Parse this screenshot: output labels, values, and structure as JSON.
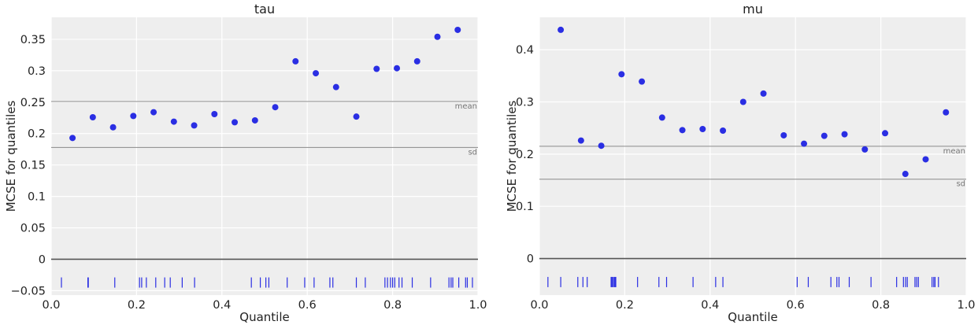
{
  "chart_data": [
    {
      "type": "scatter",
      "title": "tau",
      "xlabel": "Quantile",
      "ylabel": "MCSE for quantiles",
      "xlim": [
        0,
        1
      ],
      "ylim": [
        -0.057,
        0.385
      ],
      "xticks": [
        0,
        0.2,
        0.4,
        0.6,
        0.8,
        1
      ],
      "xtick_labels": [
        "0.0",
        "0.2",
        "0.4",
        "0.6",
        "0.8",
        "1.0"
      ],
      "yticks": [
        -0.05,
        0,
        0.05,
        0.1,
        0.15,
        0.2,
        0.25,
        0.3,
        0.35
      ],
      "ytick_labels": [
        "−0.05",
        "0",
        "0.05",
        "0.1",
        "0.15",
        "0.2",
        "0.25",
        "0.3",
        "0.35"
      ],
      "grid": true,
      "background": "#eeeeee",
      "point_color": "#2a2ee3",
      "x": [
        0.05,
        0.0975,
        0.145,
        0.1925,
        0.24,
        0.2875,
        0.335,
        0.3825,
        0.43,
        0.4775,
        0.525,
        0.5725,
        0.62,
        0.6675,
        0.715,
        0.7625,
        0.81,
        0.8575,
        0.905,
        0.9525
      ],
      "y": [
        0.193,
        0.226,
        0.21,
        0.228,
        0.234,
        0.219,
        0.213,
        0.231,
        0.218,
        0.221,
        0.242,
        0.315,
        0.296,
        0.274,
        0.227,
        0.303,
        0.304,
        0.315,
        0.354,
        0.365
      ],
      "reference_lines": [
        {
          "label": "mean",
          "value": 0.251
        },
        {
          "label": "sd",
          "value": 0.178
        }
      ],
      "zero_line": 0,
      "rug_y": -0.037,
      "rug_x": [
        0.024,
        0.086,
        0.087,
        0.149,
        0.207,
        0.212,
        0.223,
        0.245,
        0.266,
        0.279,
        0.307,
        0.336,
        0.469,
        0.49,
        0.503,
        0.51,
        0.553,
        0.594,
        0.616,
        0.653,
        0.66,
        0.715,
        0.736,
        0.782,
        0.788,
        0.795,
        0.8,
        0.805,
        0.815,
        0.822,
        0.846,
        0.889,
        0.932,
        0.937,
        0.941,
        0.955,
        0.971,
        0.975,
        0.987
      ]
    },
    {
      "type": "scatter",
      "title": "mu",
      "xlabel": "Quantile",
      "ylabel": "MCSE for quantiles",
      "xlim": [
        0,
        1
      ],
      "ylim": [
        -0.07,
        0.462
      ],
      "xticks": [
        0,
        0.2,
        0.4,
        0.6,
        0.8,
        1
      ],
      "xtick_labels": [
        "0.0",
        "0.2",
        "0.4",
        "0.6",
        "0.8",
        "1.0"
      ],
      "yticks": [
        0,
        0.1,
        0.2,
        0.3,
        0.4
      ],
      "ytick_labels": [
        "0",
        "0.1",
        "0.2",
        "0.3",
        "0.4"
      ],
      "grid": true,
      "background": "#eeeeee",
      "point_color": "#2a2ee3",
      "x": [
        0.05,
        0.0975,
        0.145,
        0.1925,
        0.24,
        0.2875,
        0.335,
        0.3825,
        0.43,
        0.4775,
        0.525,
        0.5725,
        0.62,
        0.6675,
        0.715,
        0.7625,
        0.81,
        0.8575,
        0.905,
        0.9525
      ],
      "y": [
        0.438,
        0.226,
        0.216,
        0.353,
        0.339,
        0.27,
        0.246,
        0.248,
        0.245,
        0.3,
        0.316,
        0.236,
        0.22,
        0.235,
        0.238,
        0.209,
        0.24,
        0.162,
        0.19,
        0.28
      ],
      "reference_lines": [
        {
          "label": "mean",
          "value": 0.215
        },
        {
          "label": "sd",
          "value": 0.152
        }
      ],
      "zero_line": 0,
      "rug_y": -0.045,
      "rug_x": [
        0.02,
        0.05,
        0.09,
        0.102,
        0.112,
        0.168,
        0.17,
        0.172,
        0.175,
        0.177,
        0.179,
        0.23,
        0.28,
        0.298,
        0.36,
        0.413,
        0.43,
        0.604,
        0.63,
        0.683,
        0.697,
        0.702,
        0.726,
        0.777,
        0.837,
        0.853,
        0.858,
        0.862,
        0.88,
        0.884,
        0.888,
        0.92,
        0.924,
        0.927,
        0.935
      ]
    }
  ]
}
